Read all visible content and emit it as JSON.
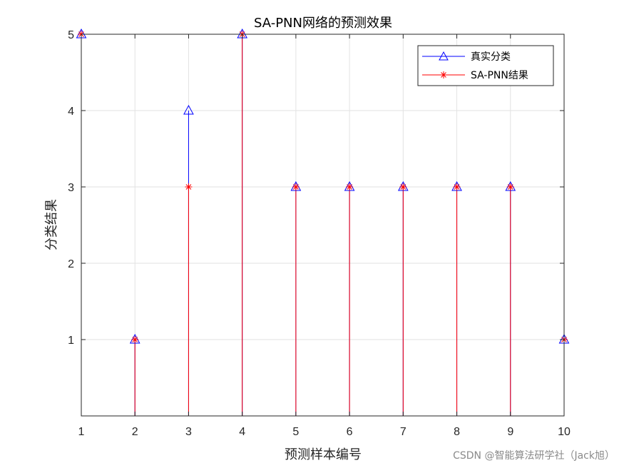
{
  "chart_data": {
    "type": "stem",
    "title": "SA-PNN网络的预测效果",
    "xlabel": "预测样本编号",
    "ylabel": "分类结果",
    "x": [
      1,
      2,
      3,
      4,
      5,
      6,
      7,
      8,
      9,
      10
    ],
    "xlim": [
      1,
      10
    ],
    "ylim": [
      0,
      5
    ],
    "xticks": [
      "1",
      "2",
      "3",
      "4",
      "5",
      "6",
      "7",
      "8",
      "9",
      "10"
    ],
    "yticks": [
      "1",
      "2",
      "3",
      "4",
      "5"
    ],
    "grid": true,
    "legend_position": "top-right",
    "series": [
      {
        "name": "真实分类",
        "values": [
          5,
          1,
          4,
          5,
          3,
          3,
          3,
          3,
          3,
          1
        ],
        "color": "#0000ff",
        "marker": "triangle"
      },
      {
        "name": "SA-PNN结果",
        "values": [
          5,
          1,
          3,
          5,
          3,
          3,
          3,
          3,
          3,
          1
        ],
        "color": "#ff0000",
        "marker": "asterisk"
      }
    ]
  },
  "watermark": "CSDN @智能算法研学社（Jack旭）"
}
